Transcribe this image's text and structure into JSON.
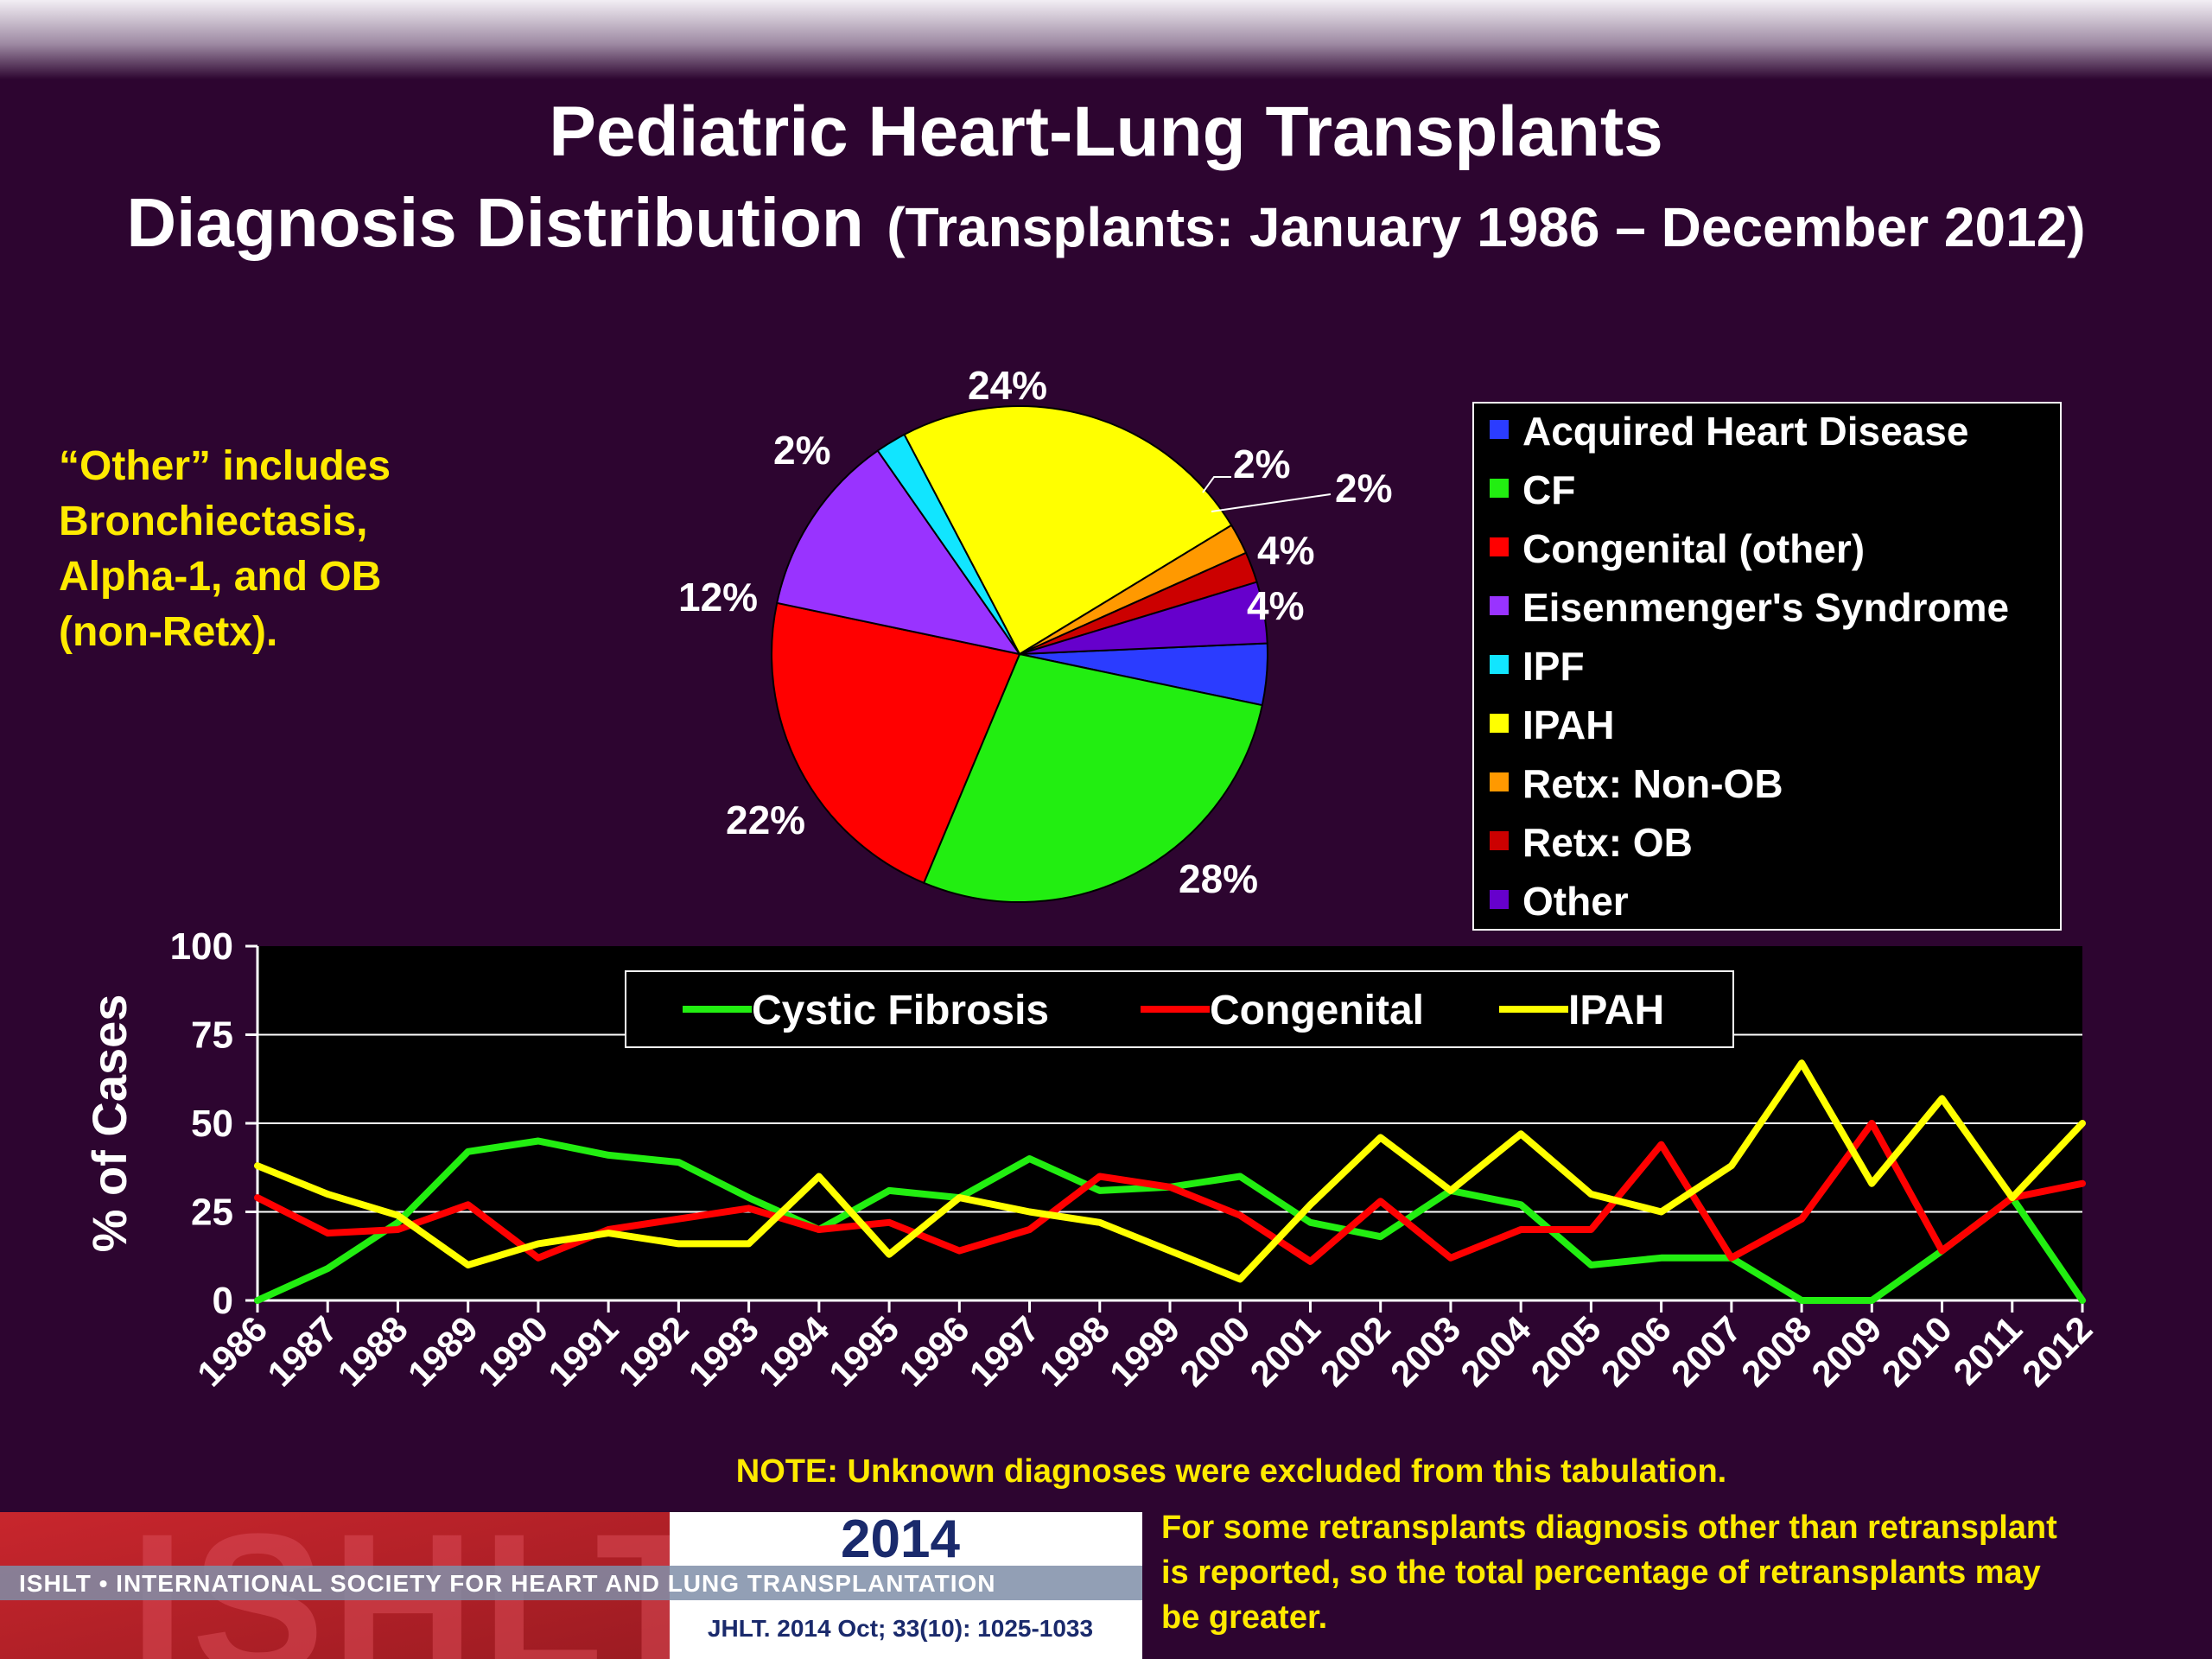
{
  "slide": {
    "title_line1": "Pediatric Heart-Lung Transplants",
    "title_line2_main": "Diagnosis Distribution",
    "title_line2_sub": "(Transplants: January 1986 –  December 2012)",
    "colors": {
      "background": "#2d0530",
      "title": "#ffffff",
      "note": "#ffea00"
    }
  },
  "side_note": {
    "lines": [
      "“Other” includes",
      "Bronchiectasis,",
      "Alpha-1, and OB",
      "(non-Retx)."
    ]
  },
  "footer": {
    "note": "NOTE: Unknown diagnoses were excluded from this tabulation.",
    "retransplant_lines": [
      "For some retransplants diagnosis other than retransplant",
      "is reported, so the total percentage of retransplants may",
      "be greater."
    ],
    "logo": {
      "text": "ISHLT",
      "society": "ISHLT • INTERNATIONAL SOCIETY FOR HEART AND LUNG TRANSPLANTATION",
      "year": "2014",
      "citation": "JHLT. 2014 Oct; 33(10): 1025-1033"
    }
  },
  "chart_data": [
    {
      "type": "pie",
      "slices": [
        {
          "name": "Acquired Heart Disease",
          "value": 4,
          "label": "4%",
          "color": "#2b3cff"
        },
        {
          "name": "CF",
          "value": 28,
          "label": "28%",
          "color": "#22ee11"
        },
        {
          "name": "Congenital (other)",
          "value": 22,
          "label": "22%",
          "color": "#ff0000"
        },
        {
          "name": "Eisenmenger's Syndrome",
          "value": 12,
          "label": "12%",
          "color": "#9933ff"
        },
        {
          "name": "IPF",
          "value": 2,
          "label": "2%",
          "color": "#11e5ff"
        },
        {
          "name": "IPAH",
          "value": 24,
          "label": "24%",
          "color": "#ffff00"
        },
        {
          "name": "Retx: Non-OB",
          "value": 2,
          "label": "2%",
          "color": "#ff9900"
        },
        {
          "name": "Retx: OB",
          "value": 2,
          "label": "2%",
          "color": "#cc0000"
        },
        {
          "name": "Other",
          "value": 4,
          "label": "4%",
          "color": "#6600cc"
        }
      ],
      "legend_position": "right"
    },
    {
      "type": "line",
      "x": [
        "1986",
        "1987",
        "1988",
        "1989",
        "1990",
        "1991",
        "1992",
        "1993",
        "1994",
        "1995",
        "1996",
        "1997",
        "1998",
        "1999",
        "2000",
        "2001",
        "2002",
        "2003",
        "2004",
        "2005",
        "2006",
        "2007",
        "2008",
        "2009",
        "2010",
        "2011",
        "2012"
      ],
      "ylabel": "% of Cases",
      "ylim": [
        0,
        100
      ],
      "yticks": [
        "0",
        "25",
        "50",
        "75",
        "100"
      ],
      "grid": true,
      "legend_position": "top",
      "series": [
        {
          "name": "Cystic Fibrosis",
          "color": "#22ee11",
          "values": [
            0,
            9,
            22,
            42,
            45,
            41,
            39,
            29,
            20,
            31,
            29,
            40,
            31,
            32,
            35,
            22,
            18,
            31,
            27,
            10,
            12,
            12,
            0,
            0,
            14,
            29,
            0
          ]
        },
        {
          "name": "Congenital",
          "color": "#ff0000",
          "values": [
            29,
            19,
            20,
            27,
            12,
            20,
            23,
            26,
            20,
            22,
            14,
            20,
            35,
            32,
            24,
            11,
            28,
            12,
            20,
            20,
            44,
            12,
            23,
            50,
            14,
            29,
            33
          ]
        },
        {
          "name": "IPAH",
          "color": "#ffff00",
          "values": [
            38,
            30,
            24,
            10,
            16,
            19,
            16,
            16,
            35,
            13,
            29,
            25,
            22,
            14,
            6,
            27,
            46,
            31,
            47,
            30,
            25,
            38,
            67,
            33,
            57,
            29,
            50
          ]
        }
      ]
    }
  ]
}
